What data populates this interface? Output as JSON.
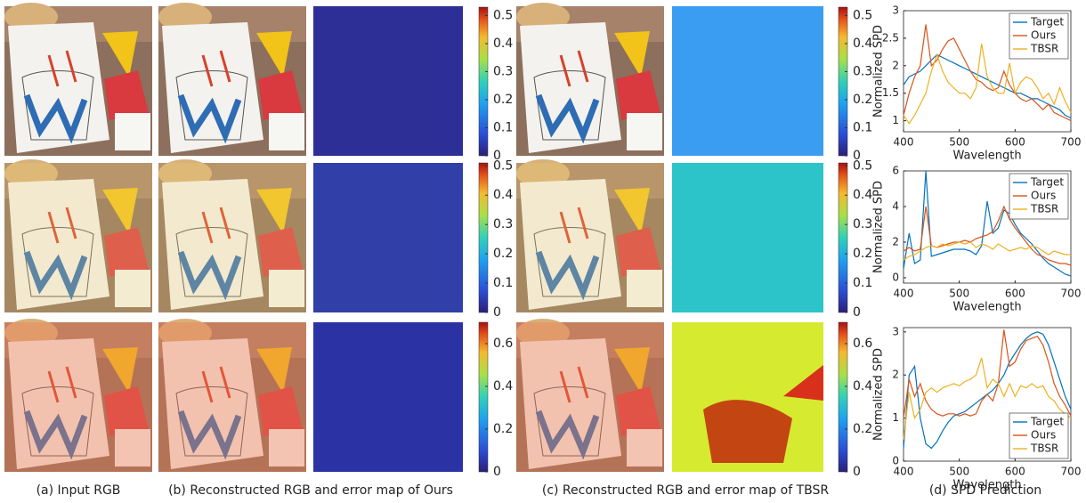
{
  "captions": [
    "(a) Input RGB",
    "(b) Reconstructed RGB and error map of Ours",
    "(c) Reconstructed RGB and error map of TBSR",
    "(d) SPD Prediction"
  ],
  "colorbars": [
    {
      "ylim": [
        0,
        0.53
      ],
      "yticks": [
        0,
        0.1,
        0.2,
        0.3,
        0.4,
        0.5
      ]
    },
    {
      "ylim": [
        0,
        0.51
      ],
      "yticks": [
        0,
        0.1,
        0.2,
        0.3,
        0.4,
        0.5
      ]
    },
    {
      "ylim": [
        0,
        0.7
      ],
      "yticks": [
        0,
        0.2,
        0.4,
        0.6
      ]
    }
  ],
  "chart_data": [
    {
      "type": "line",
      "xlabel": "Wavelength",
      "ylabel": "Normalized SPD",
      "legend": "upper right",
      "xlim": [
        400,
        700
      ],
      "xticks": [
        400,
        500,
        600,
        700
      ],
      "ylim": [
        0.8,
        3
      ],
      "yticks": [
        1,
        1.5,
        2,
        2.5,
        3
      ],
      "x": [
        400,
        410,
        420,
        430,
        440,
        450,
        460,
        470,
        480,
        490,
        500,
        510,
        520,
        530,
        540,
        550,
        560,
        570,
        580,
        590,
        600,
        610,
        620,
        630,
        640,
        650,
        660,
        670,
        680,
        690,
        700
      ],
      "series": [
        {
          "name": "Target",
          "color": "#0072bd",
          "values": [
            1.65,
            1.8,
            1.85,
            1.9,
            2.0,
            2.1,
            2.2,
            2.15,
            2.1,
            2.05,
            2.0,
            1.95,
            1.9,
            1.85,
            1.8,
            1.75,
            1.7,
            1.65,
            1.6,
            1.55,
            1.5,
            1.5,
            1.45,
            1.4,
            1.4,
            1.35,
            1.3,
            1.25,
            1.2,
            1.1,
            1.05
          ]
        },
        {
          "name": "Ours",
          "color": "#d95319",
          "values": [
            1.1,
            1.5,
            1.8,
            2.0,
            2.75,
            2.0,
            2.1,
            2.3,
            2.45,
            2.5,
            2.3,
            2.1,
            1.9,
            1.75,
            1.7,
            1.6,
            1.55,
            1.6,
            1.9,
            1.65,
            1.5,
            1.4,
            1.35,
            1.4,
            1.3,
            1.2,
            1.3,
            1.15,
            1.1,
            1.05,
            1.0
          ]
        },
        {
          "name": "TBSR",
          "color": "#edb120",
          "values": [
            1.1,
            0.95,
            1.1,
            1.3,
            1.5,
            1.9,
            2.2,
            1.9,
            1.7,
            1.6,
            1.5,
            1.5,
            1.4,
            1.6,
            2.4,
            1.8,
            1.6,
            1.5,
            1.5,
            2.05,
            1.5,
            1.7,
            1.8,
            1.75,
            1.6,
            1.4,
            1.5,
            1.3,
            1.6,
            1.35,
            1.15
          ]
        }
      ]
    },
    {
      "type": "line",
      "xlabel": "Wavelength",
      "ylabel": "Normalized SPD",
      "legend": "upper right",
      "xlim": [
        400,
        700
      ],
      "xticks": [
        400,
        500,
        600,
        700
      ],
      "ylim": [
        -0.3,
        6
      ],
      "yticks": [
        0,
        2,
        4,
        6
      ],
      "x": [
        400,
        410,
        420,
        430,
        440,
        450,
        460,
        470,
        480,
        490,
        500,
        510,
        520,
        530,
        540,
        550,
        560,
        570,
        580,
        590,
        600,
        610,
        620,
        630,
        640,
        650,
        660,
        670,
        680,
        690,
        700
      ],
      "series": [
        {
          "name": "Target",
          "color": "#0072bd",
          "values": [
            0.5,
            2.5,
            0.8,
            1.0,
            6.0,
            1.2,
            1.3,
            1.4,
            1.5,
            1.6,
            1.6,
            1.6,
            1.5,
            1.3,
            1.8,
            4.3,
            2.5,
            2.8,
            3.8,
            3.6,
            3.0,
            2.5,
            2.2,
            1.9,
            1.5,
            1.1,
            0.8,
            0.6,
            0.4,
            0.2,
            0.1
          ]
        },
        {
          "name": "Ours",
          "color": "#d95319",
          "values": [
            1.5,
            1.7,
            1.5,
            1.6,
            4.0,
            1.8,
            1.7,
            1.8,
            1.9,
            2.0,
            2.0,
            2.1,
            2.0,
            2.2,
            2.3,
            2.4,
            2.6,
            3.2,
            4.0,
            3.3,
            2.8,
            2.4,
            2.0,
            1.6,
            1.3,
            1.2,
            1.0,
            0.9,
            0.8,
            0.8,
            0.7
          ]
        },
        {
          "name": "TBSR",
          "color": "#edb120",
          "values": [
            1.0,
            1.2,
            1.3,
            1.5,
            1.7,
            1.8,
            1.7,
            1.9,
            1.8,
            1.9,
            2.0,
            1.9,
            2.0,
            1.7,
            1.9,
            1.8,
            1.6,
            1.9,
            1.7,
            1.5,
            1.6,
            1.7,
            1.6,
            1.8,
            1.7,
            1.5,
            1.3,
            1.5,
            1.4,
            1.3,
            1.3
          ]
        }
      ]
    },
    {
      "type": "line",
      "xlabel": "Wavelength",
      "ylabel": "Normalized SPD",
      "legend": "lower right",
      "xlim": [
        400,
        700
      ],
      "xticks": [
        400,
        500,
        600,
        700
      ],
      "ylim": [
        0,
        3.1
      ],
      "yticks": [
        0,
        1,
        2,
        3
      ],
      "x": [
        400,
        410,
        420,
        430,
        440,
        450,
        460,
        470,
        480,
        490,
        500,
        510,
        520,
        530,
        540,
        550,
        560,
        570,
        580,
        590,
        600,
        610,
        620,
        630,
        640,
        650,
        660,
        670,
        680,
        690,
        700
      ],
      "series": [
        {
          "name": "Target",
          "color": "#0072bd",
          "values": [
            0.3,
            2.0,
            2.2,
            1.0,
            0.4,
            0.3,
            0.45,
            0.7,
            0.9,
            1.05,
            1.1,
            1.15,
            1.25,
            1.35,
            1.45,
            1.55,
            1.65,
            1.8,
            2.0,
            2.3,
            2.5,
            2.7,
            2.85,
            2.95,
            3.0,
            2.95,
            2.7,
            2.3,
            1.9,
            1.5,
            1.2
          ]
        },
        {
          "name": "Ours",
          "color": "#d95319",
          "values": [
            1.0,
            1.9,
            1.5,
            1.8,
            1.4,
            1.2,
            1.1,
            1.05,
            1.1,
            1.1,
            1.05,
            1.1,
            1.05,
            1.1,
            1.4,
            1.55,
            1.4,
            1.8,
            3.05,
            2.2,
            2.3,
            2.6,
            2.8,
            2.85,
            2.9,
            2.7,
            2.3,
            1.8,
            1.5,
            1.3,
            1.05
          ]
        },
        {
          "name": "TBSR",
          "color": "#edb120",
          "values": [
            0.5,
            1.6,
            1.0,
            1.2,
            1.6,
            1.7,
            1.6,
            1.7,
            1.75,
            1.8,
            1.75,
            1.85,
            1.9,
            2.0,
            2.4,
            1.7,
            1.9,
            1.8,
            1.5,
            1.8,
            1.5,
            1.75,
            1.7,
            1.8,
            1.7,
            1.75,
            1.5,
            1.4,
            1.2,
            1.1,
            1.0
          ]
        }
      ]
    }
  ]
}
